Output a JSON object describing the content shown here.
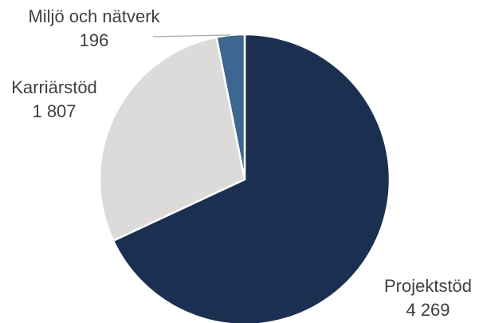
{
  "chart_data": {
    "type": "pie",
    "slices": [
      {
        "label": "Projektstöd",
        "value_text": "4 269",
        "value": 4269,
        "color": "#1b3050"
      },
      {
        "label": "Karriärstöd",
        "value_text": "1 807",
        "value": 1807,
        "color": "#dcdbd9"
      },
      {
        "label": "Miljö och nätverk",
        "value_text": "196",
        "value": 196,
        "color": "#3d6790"
      }
    ]
  }
}
